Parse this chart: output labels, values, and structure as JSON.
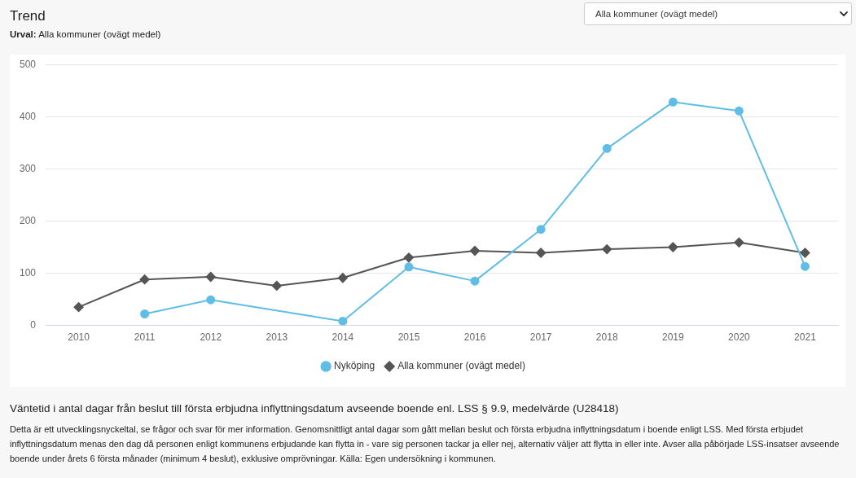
{
  "chart_data": {
    "type": "line",
    "title": "Trend",
    "subtitle": "Urval: Alla kommuner (ovägt medel)",
    "categories": [
      "2010",
      "2011",
      "2012",
      "2013",
      "2014",
      "2015",
      "2016",
      "2017",
      "2018",
      "2019",
      "2020",
      "2021"
    ],
    "series": [
      {
        "name": "Nyköping",
        "color": "#5fbde6",
        "marker": "circle",
        "values": [
          null,
          22,
          49,
          null,
          8,
          112,
          85,
          184,
          339,
          428,
          411,
          113
        ]
      },
      {
        "name": "Alla kommuner (ovägt medel)",
        "color": "#555555",
        "marker": "diamond",
        "values": [
          35,
          88,
          93,
          76,
          91,
          130,
          143,
          139,
          146,
          150,
          159,
          139
        ]
      }
    ],
    "ylim": [
      0,
      500
    ],
    "yticks": [
      0,
      100,
      200,
      300,
      400,
      500
    ],
    "grid": "y",
    "legend": "bottom",
    "line_style": "solid",
    "annotations": [
      "Alla kommuner (ovägt medel)",
      "Väntetid i antal dagar från beslut till första erbjudna inflyttningsdatum avseende boende enl. LSS § 9.9, medelvärde (U28418)",
      "Detta är ett utvecklingsnyckeltal, se frågor och svar för mer information. Genomsnittligt antal dagar som gått mellan beslut och första erbjudna inflyttningsdatum i boende enligt LSS. Med första erbjudet inflyttningsdatum menas den dag då personen enligt kommunens erbjudande kan flytta in - vare sig personen tackar ja eller nej, alternativ väljer att flytta in eller inte. Avser alla påbörjade LSS-insatser avseende boende under årets 6 första månader (minimum 4 beslut), exklusive omprövningar. Källa: Egen undersökning i kommunen."
    ]
  }
}
